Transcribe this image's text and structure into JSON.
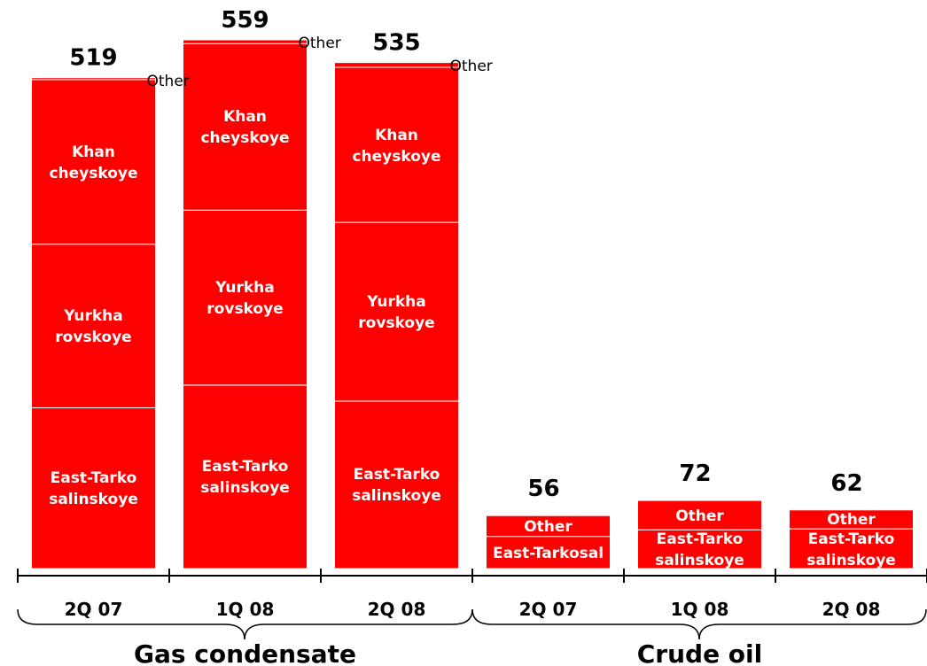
{
  "chart_data": [
    {
      "type": "stacked_bar",
      "xlabel": "Gas condensate",
      "categories": [
        "2Q 07",
        "1Q 08",
        "2Q 08"
      ],
      "totals": [
        519,
        559,
        535
      ],
      "series": [
        {
          "name": "East-Tarko salinskoye",
          "color": "#ff0000",
          "values": [
            170,
            194,
            177
          ],
          "labels": [
            "East-Tarko\nsalinskoye",
            "East-Tarko\nsalinskoye",
            "East-Tarko\nsalinskoye"
          ]
        },
        {
          "name": "Yurkha rovskoye",
          "color": "#ff0000",
          "values": [
            173,
            185,
            189
          ],
          "labels": [
            "Yurkha\nrovskoye",
            "Yurkha\nrovskoye",
            "Yurkha\nrovskoye"
          ]
        },
        {
          "name": "Khan cheyskoye",
          "color": "#ff0000",
          "values": [
            174,
            176,
            164
          ],
          "labels": [
            "Khan\ncheyskoye",
            "Khan\ncheyskoye",
            "Khan\ncheyskoye"
          ]
        },
        {
          "name": "Other",
          "color": "#ff0000",
          "values": [
            2,
            4,
            5
          ],
          "labels": [
            "Other",
            "Other",
            "Other"
          ]
        }
      ]
    },
    {
      "type": "stacked_bar",
      "xlabel": "Crude oil",
      "categories": [
        "2Q 07",
        "1Q 08",
        "2Q 08"
      ],
      "totals": [
        56,
        72,
        62
      ],
      "series": [
        {
          "name": "East-Tarko salinskoye",
          "color": "#ff0000",
          "values": [
            34,
            41,
            42
          ],
          "labels": [
            "East-Tarkosal",
            "East-Tarko\nsalinskoye",
            "East-Tarko\nsalinskoye"
          ]
        },
        {
          "name": "Other",
          "color": "#ff0000",
          "values": [
            22,
            31,
            20
          ],
          "labels": [
            "Other",
            "Other",
            "Other"
          ]
        }
      ]
    }
  ]
}
